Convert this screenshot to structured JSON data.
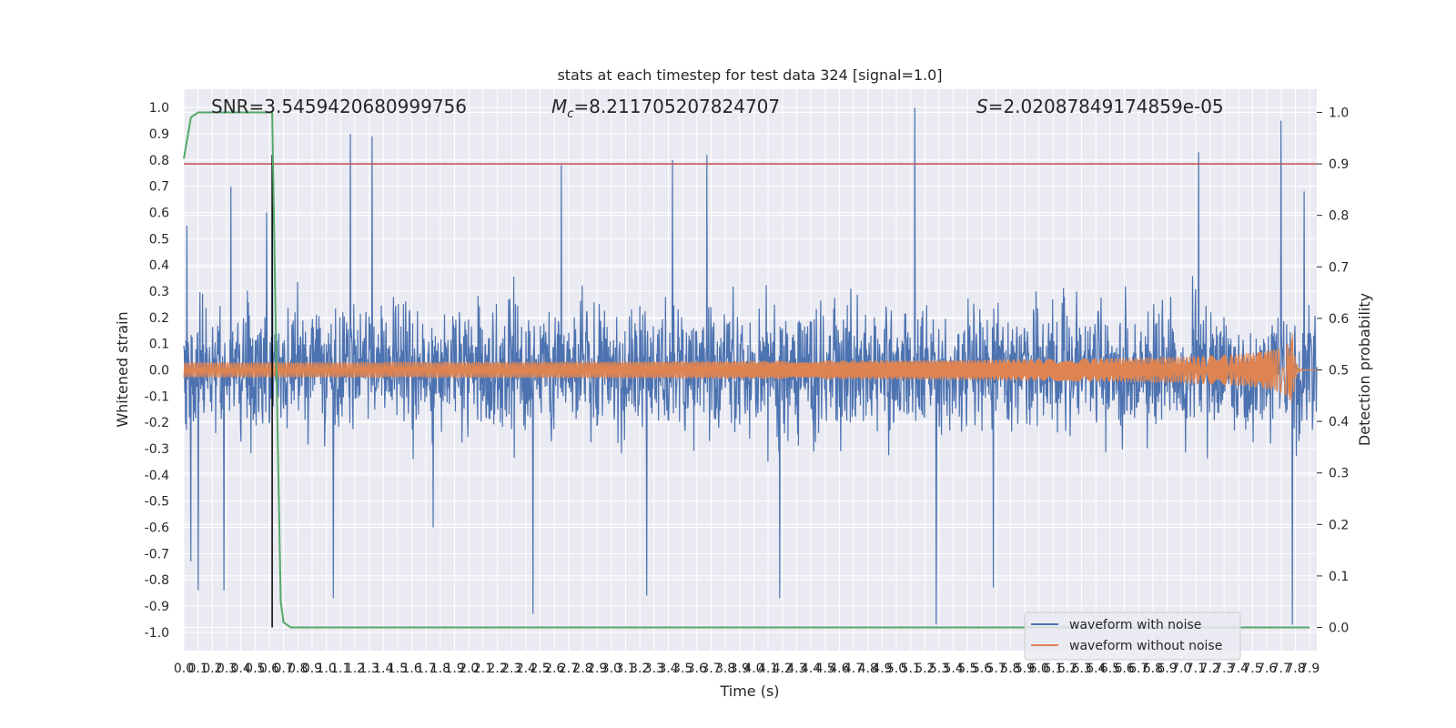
{
  "chart_data": {
    "type": "line",
    "title": "stats at each timestep for test data 324 [signal=1.0]",
    "xlabel": "Time (s)",
    "ylabel": "Whitened strain",
    "y2label": "Detection probability",
    "stats": {
      "snr": "SNR=3.5459420680999756",
      "mc_symbol": "M",
      "mc_sub": "c",
      "mc_value": "=8.211705207824707",
      "s_symbol": "S",
      "s_value": "=2.02087849174859e-05"
    },
    "xlim": [
      0,
      7.95
    ],
    "ylim": [
      -1.07,
      1.07
    ],
    "y2lim": [
      -0.045,
      1.045
    ],
    "grid": true,
    "legend_position": "lower right",
    "x_ticks": [
      "0.0",
      "0.1",
      "0.2",
      "0.3",
      "0.4",
      "0.5",
      "0.6",
      "0.7",
      "0.8",
      "0.9",
      "1.0",
      "1.1",
      "1.2",
      "1.3",
      "1.4",
      "1.5",
      "1.6",
      "1.7",
      "1.8",
      "1.9",
      "2.0",
      "2.1",
      "2.2",
      "2.3",
      "2.4",
      "2.5",
      "2.6",
      "2.7",
      "2.8",
      "2.9",
      "3.0",
      "3.1",
      "3.2",
      "3.3",
      "3.4",
      "3.5",
      "3.6",
      "3.7",
      "3.8",
      "3.9",
      "4.0",
      "4.1",
      "4.2",
      "4.3",
      "4.4",
      "4.5",
      "4.6",
      "4.7",
      "4.8",
      "4.9",
      "5.0",
      "5.1",
      "5.2",
      "5.3",
      "5.4",
      "5.5",
      "5.6",
      "5.7",
      "5.8",
      "5.9",
      "6.0",
      "6.1",
      "6.2",
      "6.3",
      "6.4",
      "6.5",
      "6.6",
      "6.7",
      "6.8",
      "6.9",
      "7.0",
      "7.1",
      "7.2",
      "7.3",
      "7.4",
      "7.5",
      "7.6",
      "7.7",
      "7.8",
      "7.9"
    ],
    "y_ticks": [
      "1.0",
      "0.9",
      "0.8",
      "0.7",
      "0.6",
      "0.5",
      "0.4",
      "0.3",
      "0.2",
      "0.1",
      "0.0",
      "-0.1",
      "-0.2",
      "-0.3",
      "-0.4",
      "-0.5",
      "-0.6",
      "-0.7",
      "-0.8",
      "-0.9",
      "-1.0"
    ],
    "y2_ticks": [
      "1.0",
      "0.9",
      "0.8",
      "0.7",
      "0.6",
      "0.5",
      "0.4",
      "0.3",
      "0.2",
      "0.1",
      "0.0"
    ],
    "threshold": 0.9,
    "marker_time": 0.62,
    "series": [
      {
        "name": "waveform with noise",
        "color": "#4c72b0",
        "axis": "left",
        "description_level": "noisy strain, envelope about ±0.45 with spikes to ±1.0"
      },
      {
        "name": "waveform without noise",
        "color": "#dd8452",
        "axis": "left",
        "chirp_peak_time": 7.78,
        "chirp_peak_amplitude": 0.14
      },
      {
        "name": "detection probability",
        "color": "#55a868",
        "axis": "right",
        "x": [
          0.0,
          0.05,
          0.1,
          0.15,
          0.3,
          0.5,
          0.6,
          0.62,
          0.65,
          0.68,
          0.7,
          0.75,
          7.9
        ],
        "values": [
          0.91,
          0.99,
          1.0,
          1.0,
          1.0,
          1.0,
          1.0,
          1.0,
          0.5,
          0.05,
          0.01,
          0.0,
          0.0
        ]
      },
      {
        "name": "threshold",
        "color": "#c44e52",
        "axis": "right"
      },
      {
        "name": "marker",
        "color": "#000000",
        "axis": "left"
      }
    ],
    "legend": [
      "waveform with noise",
      "waveform without noise"
    ],
    "spikes": [
      {
        "x": 0.02,
        "y": 0.55
      },
      {
        "x": 0.05,
        "y": -0.73
      },
      {
        "x": 0.1,
        "y": -0.84
      },
      {
        "x": 0.28,
        "y": -0.84
      },
      {
        "x": 0.33,
        "y": 0.7
      },
      {
        "x": 0.58,
        "y": 0.6
      },
      {
        "x": 0.62,
        "y": 0.8
      },
      {
        "x": 1.05,
        "y": -0.87
      },
      {
        "x": 1.17,
        "y": 0.9
      },
      {
        "x": 1.32,
        "y": 0.89
      },
      {
        "x": 1.75,
        "y": -0.6
      },
      {
        "x": 2.45,
        "y": -0.93
      },
      {
        "x": 2.65,
        "y": 0.78
      },
      {
        "x": 3.25,
        "y": -0.86
      },
      {
        "x": 3.43,
        "y": 0.8
      },
      {
        "x": 3.67,
        "y": 0.82
      },
      {
        "x": 4.18,
        "y": -0.87
      },
      {
        "x": 5.13,
        "y": 1.0
      },
      {
        "x": 5.28,
        "y": -0.97
      },
      {
        "x": 5.68,
        "y": -0.83
      },
      {
        "x": 7.12,
        "y": 0.83
      },
      {
        "x": 7.7,
        "y": 0.95
      },
      {
        "x": 7.78,
        "y": -0.97
      },
      {
        "x": 7.86,
        "y": 0.68
      }
    ]
  }
}
